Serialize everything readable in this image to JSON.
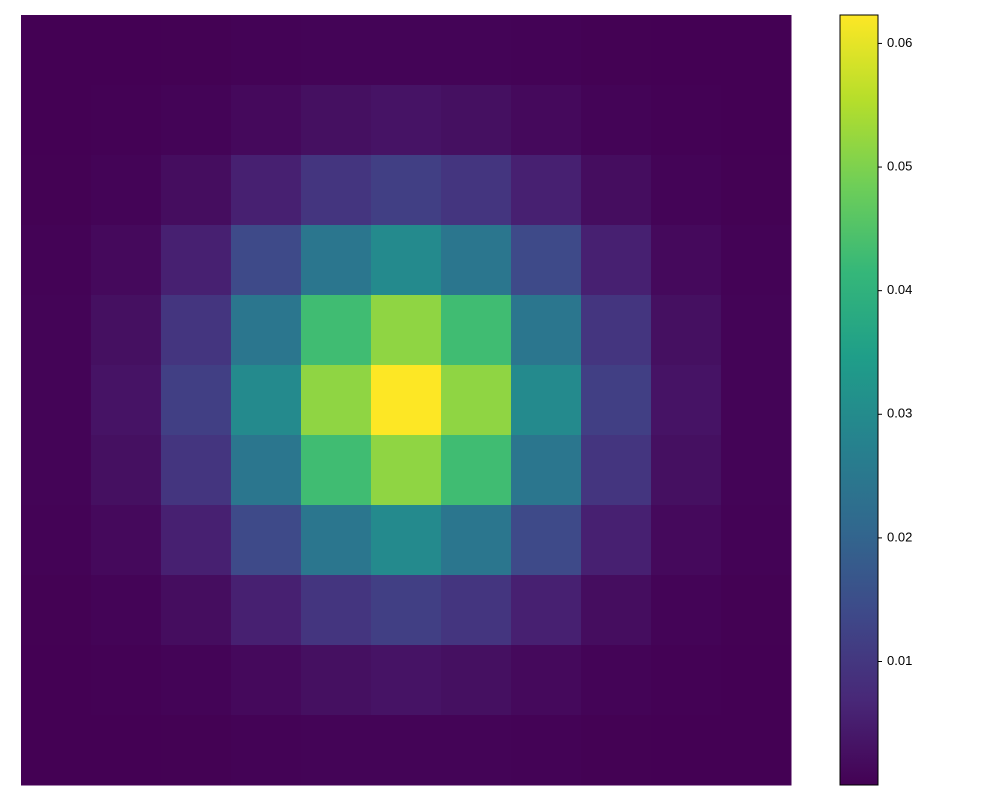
{
  "chart_data": {
    "type": "heatmap",
    "values": [
      [
        1e-05,
        3e-05,
        0.0001,
        0.0003,
        0.0005,
        0.0006,
        0.0005,
        0.0003,
        0.0001,
        3e-05,
        1e-05
      ],
      [
        3e-05,
        0.0002,
        0.0006,
        0.0015,
        0.0026,
        0.0032,
        0.0026,
        0.0015,
        0.0006,
        0.0002,
        3e-05
      ],
      [
        0.0001,
        0.0006,
        0.0022,
        0.0055,
        0.0097,
        0.0117,
        0.0097,
        0.0055,
        0.0022,
        0.0006,
        0.0001
      ],
      [
        0.0003,
        0.0015,
        0.0055,
        0.0141,
        0.0245,
        0.0296,
        0.0245,
        0.0141,
        0.0055,
        0.0015,
        0.0003
      ],
      [
        0.0005,
        0.0026,
        0.0097,
        0.0245,
        0.0429,
        0.0517,
        0.0429,
        0.0245,
        0.0097,
        0.0026,
        0.0005
      ],
      [
        0.0006,
        0.0032,
        0.0117,
        0.0296,
        0.0517,
        0.0623,
        0.0517,
        0.0296,
        0.0117,
        0.0032,
        0.0006
      ],
      [
        0.0005,
        0.0026,
        0.0097,
        0.0245,
        0.0429,
        0.0517,
        0.0429,
        0.0245,
        0.0097,
        0.0026,
        0.0005
      ],
      [
        0.0003,
        0.0015,
        0.0055,
        0.0141,
        0.0245,
        0.0296,
        0.0245,
        0.0141,
        0.0055,
        0.0015,
        0.0003
      ],
      [
        0.0001,
        0.0006,
        0.0022,
        0.0055,
        0.0097,
        0.0117,
        0.0097,
        0.0055,
        0.0022,
        0.0006,
        0.0001
      ],
      [
        3e-05,
        0.0002,
        0.0006,
        0.0015,
        0.0026,
        0.0032,
        0.0026,
        0.0015,
        0.0006,
        0.0002,
        3e-05
      ],
      [
        1e-05,
        3e-05,
        0.0001,
        0.0003,
        0.0005,
        0.0006,
        0.0005,
        0.0003,
        0.0001,
        3e-05,
        1e-05
      ]
    ],
    "colormap": [
      "#440154",
      "#482878",
      "#3e4989",
      "#31688e",
      "#26828e",
      "#1f9e89",
      "#35b779",
      "#6ece58",
      "#b5de2b",
      "#fde725"
    ],
    "clim": [
      1e-05,
      0.0623
    ],
    "cticks": [
      0.01,
      0.02,
      0.03,
      0.04,
      0.05,
      0.06
    ]
  }
}
